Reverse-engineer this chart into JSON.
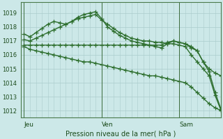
{
  "bg_color": "#cce8e8",
  "grid_color": "#aacccc",
  "line_color": "#2d6e2d",
  "marker": "+",
  "markersize": 4,
  "linewidth": 1.0,
  "ylabel_ticks": [
    1012,
    1013,
    1014,
    1015,
    1016,
    1017,
    1018,
    1019
  ],
  "ylim": [
    1011.5,
    1019.8
  ],
  "xlabel": "Pression niveau de la mer( hPa )",
  "day_labels": [
    "Jeu",
    "Ven",
    "Sam"
  ],
  "day_positions": [
    0,
    13,
    26
  ],
  "xlim": [
    -0.5,
    33
  ],
  "n_points": 34,
  "series": [
    [
      1017.5,
      1017.3,
      1017.6,
      1017.9,
      1018.2,
      1018.4,
      1018.3,
      1018.2,
      1018.4,
      1018.7,
      1018.9,
      1019.0,
      1019.1,
      1018.6,
      1018.0,
      1017.7,
      1017.4,
      1017.2,
      1017.0,
      1016.9,
      1016.8,
      1016.7,
      1016.6,
      1016.5,
      1016.8,
      1017.0,
      1016.9,
      1016.8,
      1016.6,
      1016.3,
      1015.5,
      1014.8,
      1013.3,
      1012.1
    ],
    [
      1017.1,
      1017.0,
      1017.2,
      1017.4,
      1017.6,
      1017.8,
      1018.0,
      1018.2,
      1018.4,
      1018.6,
      1018.7,
      1018.8,
      1018.9,
      1018.5,
      1018.2,
      1017.9,
      1017.6,
      1017.4,
      1017.2,
      1017.1,
      1017.0,
      1017.0,
      1016.9,
      1016.9,
      1016.8,
      1016.8,
      1016.7,
      1016.6,
      1016.0,
      1015.5,
      1015.0,
      1014.5,
      1013.1,
      1012.0
    ],
    [
      1016.7,
      1016.7,
      1016.7,
      1016.7,
      1016.7,
      1016.7,
      1016.7,
      1016.7,
      1016.7,
      1016.7,
      1016.7,
      1016.7,
      1016.7,
      1016.7,
      1016.7,
      1016.7,
      1016.7,
      1016.7,
      1016.7,
      1016.7,
      1016.7,
      1016.7,
      1016.7,
      1016.7,
      1016.9,
      1017.0,
      1016.9,
      1016.8,
      1016.5,
      1016.3,
      1015.5,
      1015.0,
      1014.7,
      1014.5
    ],
    [
      1016.6,
      1016.4,
      1016.3,
      1016.2,
      1016.1,
      1016.0,
      1015.9,
      1015.8,
      1015.7,
      1015.6,
      1015.5,
      1015.5,
      1015.4,
      1015.3,
      1015.2,
      1015.1,
      1015.0,
      1014.9,
      1014.8,
      1014.7,
      1014.6,
      1014.5,
      1014.5,
      1014.4,
      1014.3,
      1014.2,
      1014.1,
      1014.0,
      1013.7,
      1013.3,
      1012.9,
      1012.5,
      1012.2,
      1012.0
    ]
  ]
}
